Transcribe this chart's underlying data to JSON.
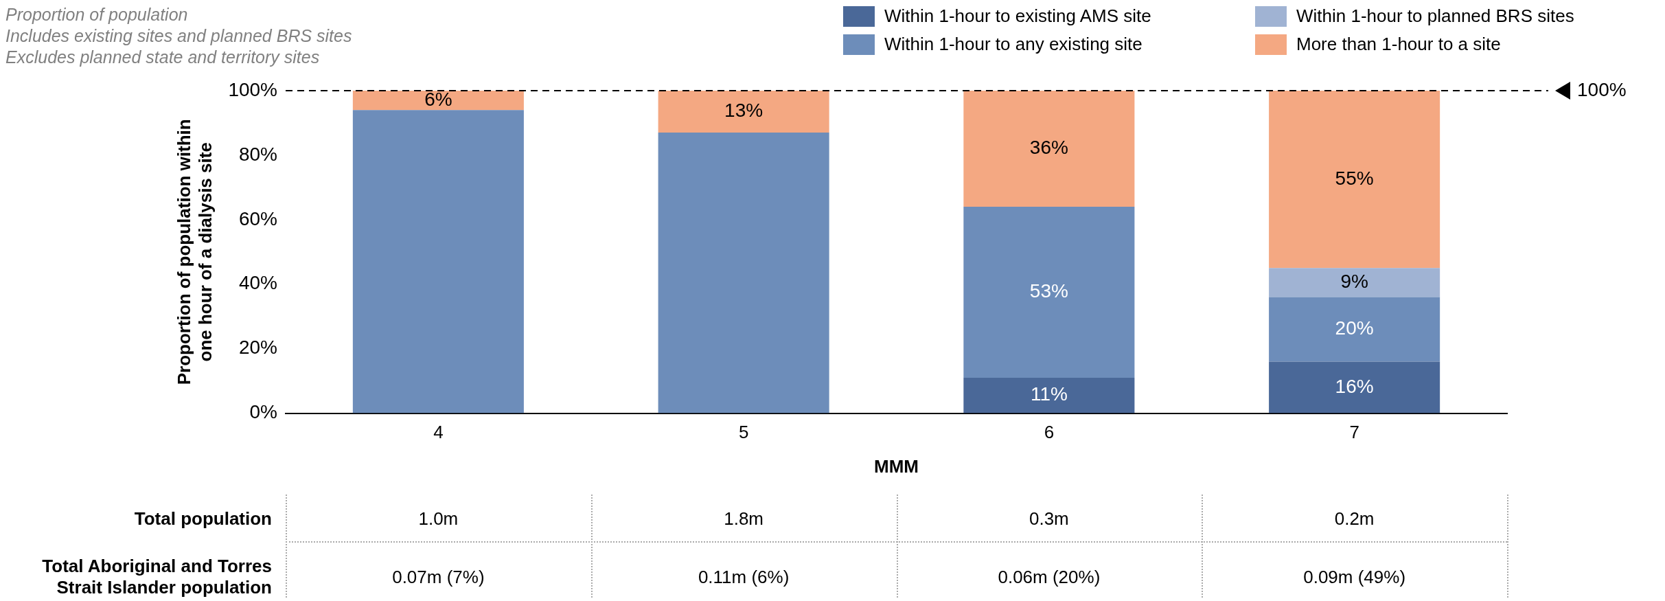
{
  "chart_data": {
    "type": "bar",
    "stacked": true,
    "title": "Proportion of population",
    "xlabel": "MMM",
    "ylabel": "Proportion of population within\none hour of a dialysis site",
    "categories": [
      "4",
      "5",
      "6",
      "7"
    ],
    "series": [
      {
        "name": "Within 1-hour to existing AMS site",
        "color": "#4a6898",
        "values": [
          0,
          0,
          11,
          16
        ],
        "value_labels": [
          null,
          null,
          "11%",
          "16%"
        ]
      },
      {
        "name": "Within 1-hour to any existing site",
        "color": "#6d8dba",
        "values": [
          94,
          87,
          53,
          20
        ],
        "value_labels": [
          null,
          null,
          "53%",
          "20%"
        ]
      },
      {
        "name": "Within 1-hour to planned BRS sites",
        "color": "#a0b3d3",
        "values": [
          0,
          0,
          0,
          9
        ],
        "value_labels": [
          null,
          null,
          null,
          "9%"
        ]
      },
      {
        "name": "More than 1-hour to a site",
        "color": "#f4a882",
        "values": [
          6,
          13,
          36,
          55
        ],
        "value_labels": [
          "6%",
          "13%",
          "36%",
          "55%"
        ]
      }
    ],
    "ylim": [
      0,
      100
    ],
    "yticks": [
      {
        "value": 0,
        "label": "0%"
      },
      {
        "value": 20,
        "label": "20%"
      },
      {
        "value": 40,
        "label": "40%"
      },
      {
        "value": 60,
        "label": "60%"
      },
      {
        "value": 80,
        "label": "80%"
      },
      {
        "value": 100,
        "label": "100%"
      }
    ],
    "grid": false,
    "legend": "top right",
    "ref_lines": [
      {
        "axis": "y",
        "value": 100,
        "label": "100%",
        "line_style": "dashed",
        "color": "#000000"
      }
    ],
    "annotations": [
      "Includes existing sites and planned BRS sites",
      "Excludes planned state and territory sites",
      "Total population",
      "1.0m",
      "1.8m",
      "0.3m",
      "0.2m",
      "Total Aboriginal and Torres Strait Islander population",
      "0.07m (7%)",
      "0.11m (6%)",
      "0.06m (20%)",
      "0.09m (49%)"
    ]
  }
}
